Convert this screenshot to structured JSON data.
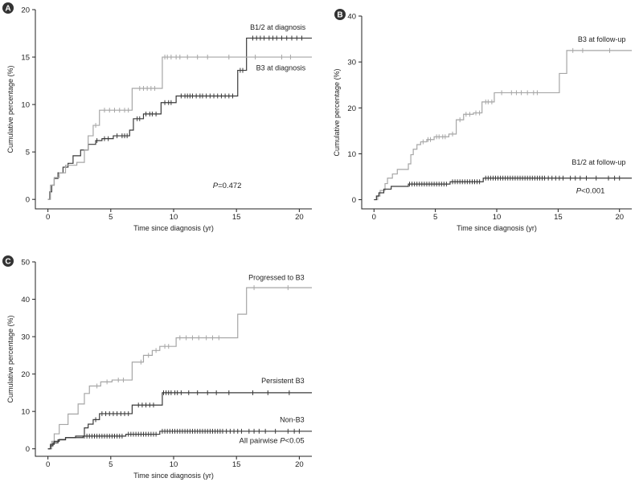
{
  "colors": {
    "dark": "#3a3a3a",
    "light": "#a6a6a6",
    "axis": "#222222",
    "badge": "#333333"
  },
  "chart_data": [
    {
      "panel": "A",
      "type": "line",
      "xlabel": "Time since diagnosis (yr)",
      "ylabel": "Cumulative percentage (%)",
      "xlim": [
        -1,
        21
      ],
      "ylim": [
        -1,
        20
      ],
      "xticks": [
        0,
        5,
        10,
        15,
        20
      ],
      "yticks": [
        0,
        5,
        10,
        15,
        20
      ],
      "annotation": {
        "italic": "P",
        "rest": "=0.472",
        "x": 15.4,
        "y": 1.2
      },
      "series": [
        {
          "name": "B1/2 at diagnosis",
          "color": "dark",
          "label_at": [
            20.5,
            17.9
          ],
          "steps": [
            [
              0,
              0
            ],
            [
              0.15,
              0.8
            ],
            [
              0.3,
              1.5
            ],
            [
              0.5,
              2.2
            ],
            [
              0.8,
              2.8
            ],
            [
              1.2,
              3.4
            ],
            [
              1.6,
              3.8
            ],
            [
              2,
              4.6
            ],
            [
              2.6,
              5.2
            ],
            [
              3.2,
              5.8
            ],
            [
              3.8,
              6.2
            ],
            [
              4.3,
              6.4
            ],
            [
              5.2,
              6.7
            ],
            [
              6.5,
              7.3
            ],
            [
              6.8,
              8.5
            ],
            [
              7.6,
              9.0
            ],
            [
              9,
              10.2
            ],
            [
              10.2,
              10.9
            ],
            [
              15.1,
              13.6
            ],
            [
              15.8,
              17.0
            ],
            [
              21,
              17.0
            ]
          ],
          "censors": [
            3.9,
            4.5,
            4.8,
            5.5,
            5.9,
            6.1,
            6.3,
            7.1,
            7.3,
            7.8,
            8.1,
            8.3,
            8.6,
            9.3,
            9.6,
            9.8,
            10.6,
            10.9,
            11.1,
            11.3,
            11.5,
            11.8,
            12.1,
            12.3,
            12.6,
            12.9,
            13.2,
            13.5,
            13.8,
            14.1,
            14.4,
            14.7,
            15.3,
            15.5,
            16.3,
            16.6,
            16.9,
            17.2,
            17.6,
            17.9,
            18.2,
            18.6,
            19.0,
            19.4,
            19.8,
            20.2
          ]
        },
        {
          "name": "B3 at diagnosis",
          "color": "light",
          "label_at": [
            20.5,
            13.6
          ],
          "steps": [
            [
              0,
              0
            ],
            [
              0.2,
              1.5
            ],
            [
              0.5,
              2.3
            ],
            [
              0.9,
              2.8
            ],
            [
              1.4,
              3.6
            ],
            [
              2.3,
              3.9
            ],
            [
              2.9,
              5.2
            ],
            [
              3.2,
              6.7
            ],
            [
              3.6,
              7.8
            ],
            [
              4.1,
              9.4
            ],
            [
              6.7,
              11.7
            ],
            [
              9.1,
              15.0
            ],
            [
              21,
              15.0
            ]
          ],
          "censors": [
            3.8,
            4.5,
            4.9,
            5.3,
            5.7,
            6.1,
            6.4,
            7.3,
            7.6,
            7.9,
            8.2,
            8.5,
            9.3,
            9.5,
            9.8,
            10.2,
            10.5,
            11.1,
            11.9,
            12.7,
            14.4,
            16.5,
            18.6,
            19.3
          ]
        }
      ]
    },
    {
      "panel": "B",
      "type": "line",
      "xlabel": "Time since diagnosis (yr)",
      "ylabel": "Cumulative percentage (%)",
      "xlim": [
        -1,
        21
      ],
      "ylim": [
        -2,
        40
      ],
      "xticks": [
        0,
        5,
        10,
        15,
        20
      ],
      "yticks": [
        0,
        10,
        20,
        30,
        40
      ],
      "annotation": {
        "italic": "P",
        "rest": "<0.001",
        "x": 18.8,
        "y": 1.4
      },
      "series": [
        {
          "name": "B3 at follow-up",
          "color": "light",
          "label_at": [
            20.5,
            34.4
          ],
          "steps": [
            [
              0,
              0
            ],
            [
              0.3,
              0.8
            ],
            [
              0.5,
              2.0
            ],
            [
              0.9,
              3.5
            ],
            [
              1.1,
              4.7
            ],
            [
              1.5,
              5.6
            ],
            [
              1.9,
              6.6
            ],
            [
              2.8,
              7.8
            ],
            [
              3.0,
              9.8
            ],
            [
              3.2,
              11.0
            ],
            [
              3.5,
              12.0
            ],
            [
              3.8,
              12.6
            ],
            [
              4.3,
              13.1
            ],
            [
              4.9,
              13.7
            ],
            [
              6.1,
              14.3
            ],
            [
              6.7,
              17.4
            ],
            [
              7.3,
              18.6
            ],
            [
              8.1,
              18.9
            ],
            [
              8.8,
              21.3
            ],
            [
              9.8,
              23.3
            ],
            [
              15.1,
              27.5
            ],
            [
              15.7,
              32.5
            ],
            [
              21,
              32.5
            ]
          ],
          "censors": [
            4.0,
            4.4,
            4.6,
            5.1,
            5.3,
            5.6,
            5.8,
            6.4,
            7.0,
            7.5,
            7.8,
            8.3,
            8.6,
            9.1,
            9.3,
            9.6,
            10.4,
            11.2,
            11.6,
            12.0,
            12.5,
            13.0,
            13.3,
            16.2,
            17.0,
            19.2
          ]
        },
        {
          "name": "B1/2 at follow-up",
          "color": "dark",
          "label_at": [
            20.5,
            7.6
          ],
          "steps": [
            [
              0,
              0
            ],
            [
              0.2,
              0.8
            ],
            [
              0.4,
              1.5
            ],
            [
              0.8,
              2.3
            ],
            [
              1.4,
              2.9
            ],
            [
              2.8,
              3.4
            ],
            [
              6.2,
              3.9
            ],
            [
              8.9,
              4.7
            ],
            [
              21,
              4.7
            ]
          ],
          "censors": [
            2.9,
            3.1,
            3.3,
            3.5,
            3.7,
            3.9,
            4.1,
            4.3,
            4.5,
            4.7,
            4.9,
            5.1,
            5.3,
            5.5,
            5.7,
            5.9,
            6.4,
            6.6,
            6.8,
            7.0,
            7.2,
            7.4,
            7.6,
            7.8,
            8.0,
            8.2,
            8.4,
            8.6,
            9.1,
            9.3,
            9.5,
            9.7,
            9.9,
            10.1,
            10.3,
            10.5,
            10.7,
            10.9,
            11.1,
            11.3,
            11.5,
            11.7,
            11.9,
            12.1,
            12.3,
            12.5,
            12.7,
            12.9,
            13.1,
            13.3,
            13.5,
            13.7,
            13.9,
            14.2,
            14.5,
            14.8,
            15.1,
            15.4,
            16.0,
            16.4,
            16.8,
            17.3,
            18.1,
            19.1,
            19.6,
            20.0
          ]
        }
      ]
    },
    {
      "panel": "C",
      "type": "line",
      "xlabel": "Time since diagnosis (yr)",
      "ylabel": "Cumulative percentage (%)",
      "xlim": [
        -1,
        21
      ],
      "ylim": [
        -2,
        50
      ],
      "xticks": [
        0,
        5,
        10,
        15,
        20
      ],
      "yticks": [
        0,
        10,
        20,
        30,
        40,
        50
      ],
      "annotation": {
        "prefix": "All pairwise ",
        "italic": "P",
        "rest": "<0.05",
        "x": 20.4,
        "y": 1.5
      },
      "series": [
        {
          "name": "Progressed to B3",
          "color": "light",
          "label_at": [
            20.4,
            45.2
          ],
          "steps": [
            [
              0,
              0
            ],
            [
              0.3,
              2.0
            ],
            [
              0.5,
              4.0
            ],
            [
              0.9,
              6.5
            ],
            [
              1.6,
              9.3
            ],
            [
              2.4,
              12.0
            ],
            [
              2.9,
              14.8
            ],
            [
              3.3,
              16.8
            ],
            [
              4.2,
              17.9
            ],
            [
              5.1,
              18.4
            ],
            [
              6.7,
              23.2
            ],
            [
              7.6,
              25.0
            ],
            [
              8.3,
              26.3
            ],
            [
              8.9,
              27.4
            ],
            [
              10.2,
              29.7
            ],
            [
              15.1,
              36.0
            ],
            [
              15.8,
              43.1
            ],
            [
              21,
              43.1
            ]
          ],
          "censors": [
            3.9,
            4.7,
            5.6,
            6.0,
            7.4,
            8.0,
            8.6,
            9.3,
            9.6,
            10.5,
            11.0,
            11.5,
            12.0,
            12.6,
            13.1,
            13.6,
            16.4,
            19.1
          ]
        },
        {
          "name": "Persistent B3",
          "color": "dark",
          "label_at": [
            20.4,
            17.6
          ],
          "steps": [
            [
              0,
              0
            ],
            [
              0.2,
              1.2
            ],
            [
              0.5,
              2.0
            ],
            [
              0.9,
              2.5
            ],
            [
              1.4,
              3.0
            ],
            [
              2.2,
              3.4
            ],
            [
              2.9,
              5.6
            ],
            [
              3.2,
              6.6
            ],
            [
              3.6,
              7.8
            ],
            [
              4.1,
              9.4
            ],
            [
              6.7,
              11.7
            ],
            [
              9.1,
              15.0
            ],
            [
              21,
              15.0
            ]
          ],
          "censors": [
            3.8,
            4.3,
            4.6,
            4.9,
            5.2,
            5.5,
            5.8,
            6.1,
            6.4,
            7.2,
            7.5,
            7.8,
            8.1,
            8.4,
            9.2,
            9.4,
            9.6,
            9.8,
            10.1,
            10.3,
            10.6,
            11.2,
            11.9,
            12.7,
            13.4,
            14.4,
            16.3,
            17.5,
            19.2
          ]
        },
        {
          "name": "Non-B3",
          "color": "dark",
          "label_at": [
            20.4,
            7.1
          ],
          "steps": [
            [
              0,
              0
            ],
            [
              0.2,
              0.8
            ],
            [
              0.4,
              1.6
            ],
            [
              0.8,
              2.4
            ],
            [
              1.4,
              3.0
            ],
            [
              2.8,
              3.4
            ],
            [
              6.2,
              3.9
            ],
            [
              8.9,
              4.7
            ],
            [
              21,
              4.7
            ]
          ],
          "censors": [
            2.9,
            3.1,
            3.3,
            3.5,
            3.7,
            3.9,
            4.1,
            4.3,
            4.5,
            4.7,
            4.9,
            5.1,
            5.3,
            5.5,
            5.7,
            5.9,
            6.4,
            6.6,
            6.8,
            7.0,
            7.2,
            7.4,
            7.6,
            7.8,
            8.0,
            8.2,
            8.4,
            8.6,
            9.1,
            9.3,
            9.5,
            9.7,
            9.9,
            10.1,
            10.3,
            10.5,
            10.7,
            10.9,
            11.1,
            11.3,
            11.5,
            11.7,
            11.9,
            12.1,
            12.3,
            12.5,
            12.7,
            12.9,
            13.1,
            13.3,
            13.5,
            13.7,
            13.9,
            14.2,
            14.5,
            14.8,
            15.1,
            15.4,
            16.0,
            16.4,
            16.8,
            17.3,
            18.1,
            19.1,
            19.6,
            20.0
          ]
        }
      ]
    }
  ]
}
